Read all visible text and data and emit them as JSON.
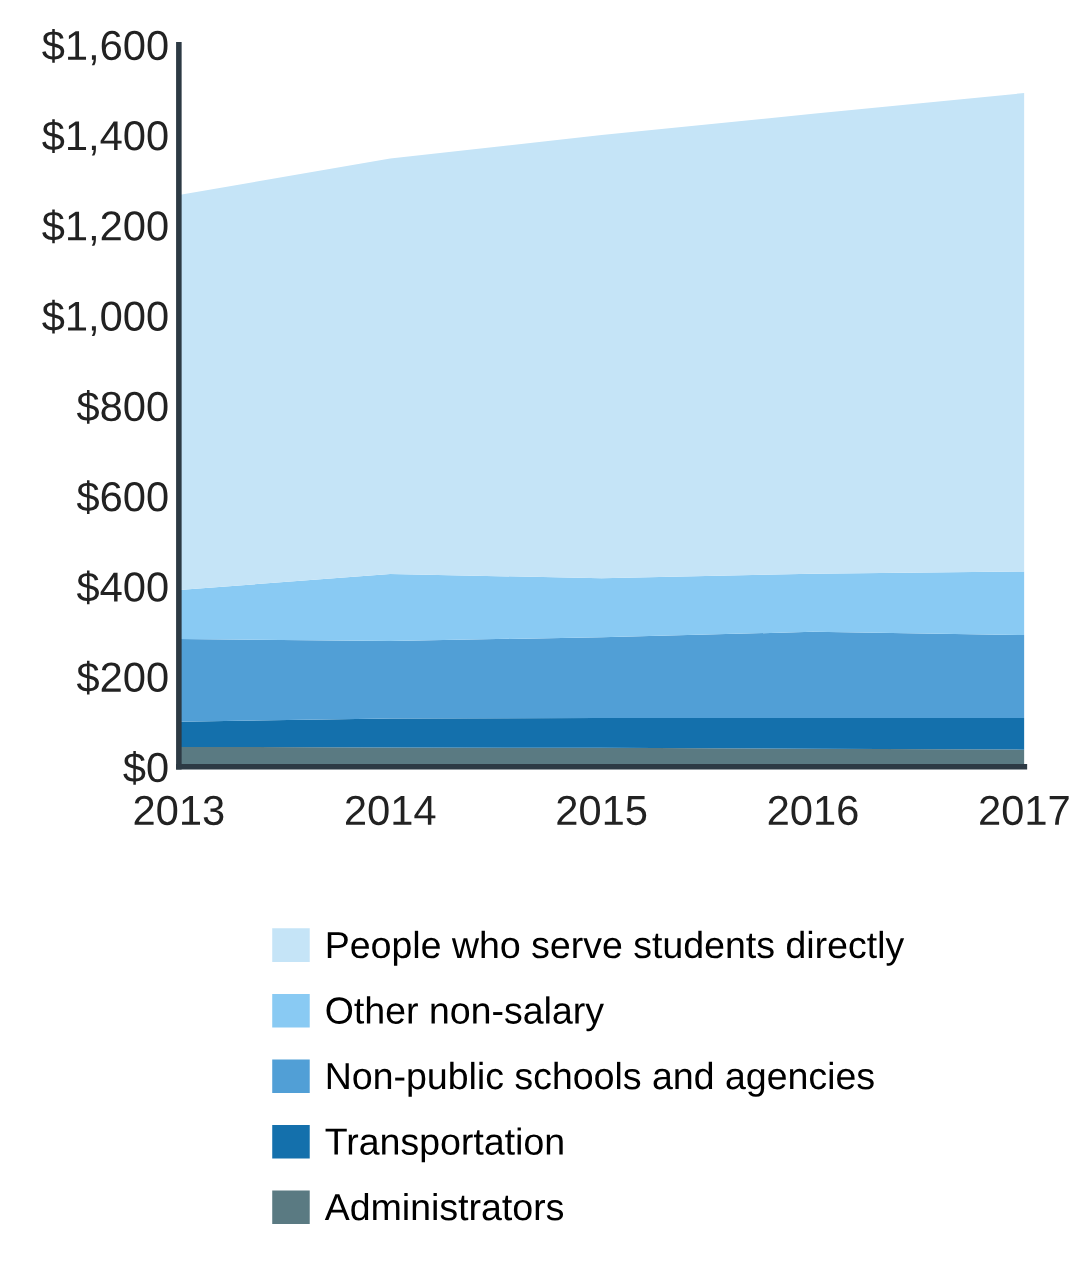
{
  "chart_data": {
    "type": "area",
    "stacked": true,
    "x": [
      2013,
      2014,
      2015,
      2016,
      2017
    ],
    "xlim": [
      2013,
      2017
    ],
    "xticks": [
      2013,
      2014,
      2015,
      2016,
      2017
    ],
    "ylim": [
      0,
      1600
    ],
    "yticks": [
      {
        "value": 0,
        "label": "$0"
      },
      {
        "value": 200,
        "label": "$200"
      },
      {
        "value": 400,
        "label": "$400"
      },
      {
        "value": 600,
        "label": "$600"
      },
      {
        "value": 800,
        "label": "$800"
      },
      {
        "value": 1000,
        "label": "$1,000"
      },
      {
        "value": 1200,
        "label": "$1,200"
      },
      {
        "value": 1400,
        "label": "$1,400"
      },
      {
        "value": 1600,
        "label": "$1,600"
      }
    ],
    "grid": false,
    "legend": "bottom",
    "series": [
      {
        "name": "Administrators",
        "color": "#5a7a82",
        "values": [
          44,
          43,
          42,
          40,
          38
        ]
      },
      {
        "name": "Transportation",
        "color": "#1470ac",
        "values": [
          56,
          64,
          66,
          68,
          70
        ]
      },
      {
        "name": "Non-public schools and agencies",
        "color": "#519fd6",
        "values": [
          183,
          172,
          179,
          191,
          184
        ]
      },
      {
        "name": "Other non-salary",
        "color": "#89caf3",
        "values": [
          109,
          148,
          131,
          129,
          141
        ]
      },
      {
        "name": "People who serve students directly",
        "color": "#c5e4f7",
        "values": [
          875,
          921,
          982,
          1019,
          1060
        ]
      }
    ]
  }
}
